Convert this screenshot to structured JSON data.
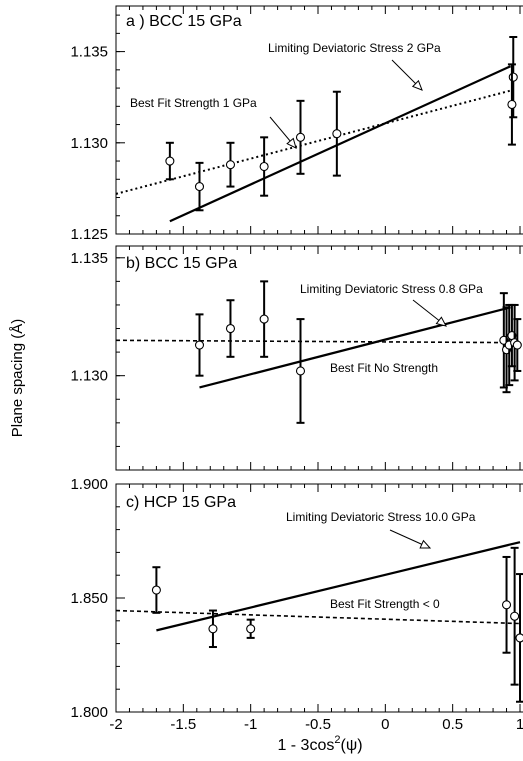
{
  "chart_data": {
    "type": "scatter",
    "shared_x": {
      "label_prefix": "1 - 3cos",
      "label_sup": "2",
      "label_suffix": "(ψ)",
      "range": [
        -2,
        1
      ],
      "ticks": [
        "-2",
        "-1.5",
        "-1",
        "-0.5",
        "0",
        "0.5",
        "1"
      ],
      "tick_values": [
        -2,
        -1.5,
        -1,
        -0.5,
        0,
        0.5,
        1
      ]
    },
    "ylabel": "Plane spacing (Å)",
    "panels": [
      {
        "title": "a ) BCC 15 GPa",
        "ylim": [
          1.125,
          1.1375
        ],
        "yticks": [
          1.125,
          1.13,
          1.135
        ],
        "ytick_labels": [
          "1.125",
          "1.130",
          "1.135"
        ],
        "points": [
          {
            "x": -1.6,
            "y": 1.129,
            "err": 0.001
          },
          {
            "x": -1.38,
            "y": 1.1276,
            "err": 0.0013
          },
          {
            "x": -1.15,
            "y": 1.1288,
            "err": 0.0012
          },
          {
            "x": -0.9,
            "y": 1.1287,
            "err": 0.0016
          },
          {
            "x": -0.63,
            "y": 1.1303,
            "err": 0.002
          },
          {
            "x": -0.36,
            "y": 1.1305,
            "err": 0.0023
          },
          {
            "x": 0.95,
            "y": 1.1336,
            "err": 0.0022
          },
          {
            "x": 0.94,
            "y": 1.1321,
            "err": 0.0022
          }
        ],
        "fits": [
          {
            "label": "Limiting Deviatoric Stress 2 GPa",
            "style": "solid",
            "x": [
              -1.6,
              0.93
            ],
            "y": [
              1.1257,
              1.1342
            ]
          },
          {
            "label": "Best Fit Strength 1 GPa",
            "style": "dotted",
            "x": [
              -2.0,
              0.95
            ],
            "y": [
              1.1272,
              1.1329
            ]
          }
        ]
      },
      {
        "title": "b) BCC 15 GPa",
        "ylim": [
          1.126,
          1.1355
        ],
        "yticks": [
          1.13,
          1.135
        ],
        "ytick_labels": [
          "1.130",
          "1.135"
        ],
        "points": [
          {
            "x": -1.38,
            "y": 1.1313,
            "err": 0.0013
          },
          {
            "x": -1.15,
            "y": 1.132,
            "err": 0.0012
          },
          {
            "x": -0.9,
            "y": 1.1324,
            "err": 0.0016
          },
          {
            "x": -0.63,
            "y": 1.1302,
            "err": 0.0022
          },
          {
            "x": 0.88,
            "y": 1.1315,
            "err": 0.002
          },
          {
            "x": 0.9,
            "y": 1.1311,
            "err": 0.0018
          },
          {
            "x": 0.92,
            "y": 1.1313,
            "err": 0.0017
          },
          {
            "x": 0.94,
            "y": 1.1317,
            "err": 0.0013
          },
          {
            "x": 0.96,
            "y": 1.1314,
            "err": 0.0016
          },
          {
            "x": 0.98,
            "y": 1.1313,
            "err": 0.0011
          }
        ],
        "fits": [
          {
            "label": "Limiting Deviatoric Stress 0.8 GPa",
            "style": "solid",
            "x": [
              -1.38,
              0.93
            ],
            "y": [
              1.1295,
              1.1329
            ]
          },
          {
            "label": "Best Fit No Strength",
            "style": "dashed",
            "x": [
              -2.0,
              1.0
            ],
            "y": [
              1.1315,
              1.1314
            ]
          }
        ]
      },
      {
        "title": "c) HCP 15 GPa",
        "ylim": [
          1.8,
          1.9
        ],
        "yticks": [
          1.8,
          1.85,
          1.9
        ],
        "ytick_labels": [
          "1.800",
          "1.850",
          "1.900"
        ],
        "points": [
          {
            "x": -1.7,
            "y": 1.8535,
            "err": 0.01
          },
          {
            "x": -1.28,
            "y": 1.8365,
            "err": 0.008
          },
          {
            "x": -1.0,
            "y": 1.8365,
            "err": 0.004
          },
          {
            "x": 0.9,
            "y": 1.847,
            "err": 0.021
          },
          {
            "x": 0.96,
            "y": 1.842,
            "err": 0.03
          },
          {
            "x": 1.0,
            "y": 1.8325,
            "err": 0.028
          }
        ],
        "fits": [
          {
            "label": "Limiting Deviatoric Stress 10.0 GPa",
            "style": "solid",
            "x": [
              -1.7,
              1.0
            ],
            "y": [
              1.8358,
              1.8745
            ]
          },
          {
            "label": "Best Fit Strength < 0",
            "style": "dashed",
            "x": [
              -2.0,
              1.0
            ],
            "y": [
              1.8445,
              1.8388
            ]
          }
        ]
      }
    ]
  }
}
